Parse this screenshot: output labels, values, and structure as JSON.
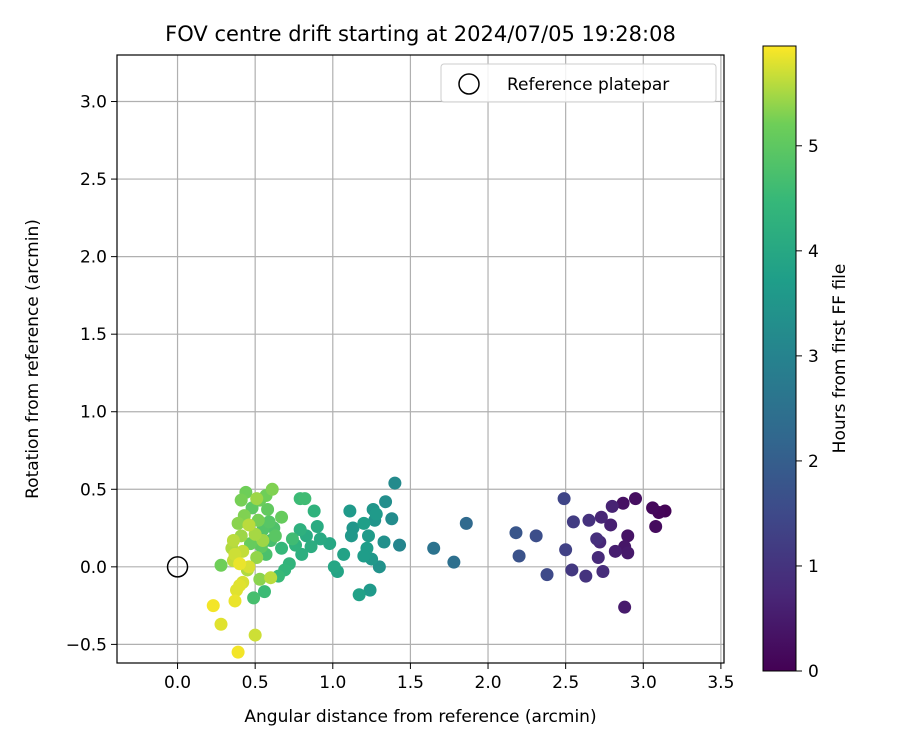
{
  "chart_data": {
    "type": "scatter",
    "title": "FOV centre drift starting at 2024/07/05 19:28:08",
    "xlabel": "Angular distance from reference (arcmin)",
    "ylabel": "Rotation from reference (arcmin)",
    "colorbar_label": "Hours from first FF file",
    "xlim": [
      -0.39,
      3.52
    ],
    "ylim": [
      -0.62,
      3.3
    ],
    "xticks": [
      0.0,
      0.5,
      1.0,
      1.5,
      2.0,
      2.5,
      3.0,
      3.5
    ],
    "xtick_labels": [
      "0.0",
      "0.5",
      "1.0",
      "1.5",
      "2.0",
      "2.5",
      "3.0",
      "3.5"
    ],
    "yticks": [
      -0.5,
      0.0,
      0.5,
      1.0,
      1.5,
      2.0,
      2.5,
      3.0
    ],
    "ytick_labels": [
      "−0.5",
      "0.0",
      "0.5",
      "1.0",
      "1.5",
      "2.0",
      "2.5",
      "3.0"
    ],
    "colorbar_range": [
      0,
      5.95
    ],
    "colorbar_ticks": [
      0,
      1,
      2,
      3,
      4,
      5
    ],
    "colorbar_tick_labels": [
      "0",
      "1",
      "2",
      "3",
      "4",
      "5"
    ],
    "colormap": "viridis",
    "grid": true,
    "legend": {
      "position": "top-right",
      "entries": [
        "Reference platepar"
      ]
    },
    "reference_point": {
      "x": 0.0,
      "y": 0.0,
      "label": "Reference platepar"
    },
    "points": [
      {
        "x": 3.14,
        "y": 0.36,
        "hours": 0.05
      },
      {
        "x": 3.1,
        "y": 0.35,
        "hours": 0.1
      },
      {
        "x": 3.06,
        "y": 0.38,
        "hours": 0.15
      },
      {
        "x": 3.08,
        "y": 0.26,
        "hours": 0.2
      },
      {
        "x": 2.95,
        "y": 0.44,
        "hours": 0.25
      },
      {
        "x": 2.87,
        "y": 0.41,
        "hours": 0.3
      },
      {
        "x": 2.9,
        "y": 0.2,
        "hours": 0.35
      },
      {
        "x": 2.88,
        "y": 0.13,
        "hours": 0.4
      },
      {
        "x": 2.9,
        "y": 0.09,
        "hours": 0.45
      },
      {
        "x": 2.88,
        "y": -0.26,
        "hours": 0.5
      },
      {
        "x": 2.82,
        "y": 0.1,
        "hours": 0.55
      },
      {
        "x": 2.79,
        "y": 0.27,
        "hours": 0.6
      },
      {
        "x": 2.8,
        "y": 0.39,
        "hours": 0.65
      },
      {
        "x": 2.73,
        "y": 0.32,
        "hours": 0.7
      },
      {
        "x": 2.72,
        "y": 0.16,
        "hours": 0.75
      },
      {
        "x": 2.71,
        "y": 0.06,
        "hours": 0.8
      },
      {
        "x": 2.74,
        "y": -0.03,
        "hours": 0.85
      },
      {
        "x": 2.7,
        "y": 0.18,
        "hours": 0.9
      },
      {
        "x": 2.65,
        "y": 0.3,
        "hours": 0.95
      },
      {
        "x": 2.63,
        "y": -0.06,
        "hours": 1.0
      },
      {
        "x": 2.54,
        "y": -0.02,
        "hours": 1.1
      },
      {
        "x": 2.55,
        "y": 0.29,
        "hours": 1.2
      },
      {
        "x": 2.5,
        "y": 0.11,
        "hours": 1.3
      },
      {
        "x": 2.49,
        "y": 0.44,
        "hours": 1.4
      },
      {
        "x": 2.38,
        "y": -0.05,
        "hours": 1.5
      },
      {
        "x": 2.31,
        "y": 0.2,
        "hours": 1.6
      },
      {
        "x": 2.2,
        "y": 0.07,
        "hours": 1.7
      },
      {
        "x": 2.18,
        "y": 0.22,
        "hours": 1.8
      },
      {
        "x": 1.86,
        "y": 0.28,
        "hours": 2.3
      },
      {
        "x": 1.78,
        "y": 0.03,
        "hours": 2.45
      },
      {
        "x": 1.65,
        "y": 0.12,
        "hours": 2.55
      },
      {
        "x": 1.43,
        "y": 0.14,
        "hours": 3.05
      },
      {
        "x": 1.4,
        "y": 0.54,
        "hours": 3.2
      },
      {
        "x": 1.38,
        "y": 0.31,
        "hours": 3.25
      },
      {
        "x": 1.34,
        "y": 0.42,
        "hours": 3.3
      },
      {
        "x": 1.33,
        "y": 0.16,
        "hours": 3.35
      },
      {
        "x": 1.3,
        "y": 0.0,
        "hours": 3.4
      },
      {
        "x": 1.27,
        "y": 0.3,
        "hours": 3.45
      },
      {
        "x": 1.26,
        "y": 0.37,
        "hours": 3.5
      },
      {
        "x": 1.25,
        "y": 0.05,
        "hours": 3.55
      },
      {
        "x": 1.24,
        "y": -0.15,
        "hours": 3.6
      },
      {
        "x": 1.23,
        "y": 0.2,
        "hours": 3.65
      },
      {
        "x": 1.22,
        "y": 0.12,
        "hours": 3.7
      },
      {
        "x": 1.2,
        "y": 0.28,
        "hours": 3.75
      },
      {
        "x": 1.17,
        "y": -0.18,
        "hours": 3.8
      },
      {
        "x": 1.13,
        "y": 0.25,
        "hours": 3.5
      },
      {
        "x": 1.12,
        "y": 0.2,
        "hours": 3.55
      },
      {
        "x": 1.11,
        "y": 0.36,
        "hours": 3.6
      },
      {
        "x": 1.07,
        "y": 0.08,
        "hours": 3.85
      },
      {
        "x": 1.03,
        "y": -0.03,
        "hours": 3.9
      },
      {
        "x": 1.01,
        "y": 0.0,
        "hours": 3.95
      },
      {
        "x": 0.98,
        "y": 0.15,
        "hours": 4.0
      },
      {
        "x": 0.92,
        "y": 0.18,
        "hours": 4.05
      },
      {
        "x": 0.9,
        "y": 0.26,
        "hours": 4.1
      },
      {
        "x": 0.88,
        "y": 0.36,
        "hours": 4.3
      },
      {
        "x": 0.86,
        "y": 0.13,
        "hours": 4.15
      },
      {
        "x": 0.83,
        "y": 0.2,
        "hours": 4.1
      },
      {
        "x": 0.82,
        "y": 0.44,
        "hours": 4.6
      },
      {
        "x": 0.8,
        "y": 0.08,
        "hours": 4.2
      },
      {
        "x": 0.79,
        "y": 0.44,
        "hours": 4.55
      },
      {
        "x": 0.79,
        "y": 0.24,
        "hours": 4.25
      },
      {
        "x": 0.76,
        "y": 0.14,
        "hours": 4.3
      },
      {
        "x": 0.72,
        "y": 0.02,
        "hours": 4.35
      },
      {
        "x": 0.69,
        "y": -0.02,
        "hours": 4.4
      },
      {
        "x": 0.67,
        "y": 0.12,
        "hours": 4.45
      },
      {
        "x": 0.67,
        "y": 0.32,
        "hours": 5.1
      },
      {
        "x": 0.65,
        "y": -0.06,
        "hours": 4.5
      },
      {
        "x": 0.62,
        "y": 0.25,
        "hours": 4.8
      },
      {
        "x": 0.61,
        "y": 0.5,
        "hours": 5.3
      },
      {
        "x": 0.6,
        "y": 0.17,
        "hours": 4.7
      },
      {
        "x": 0.59,
        "y": 0.29,
        "hours": 4.9
      },
      {
        "x": 0.58,
        "y": 0.37,
        "hours": 5.05
      },
      {
        "x": 0.57,
        "y": 0.46,
        "hours": 5.2
      },
      {
        "x": 0.57,
        "y": 0.08,
        "hours": 4.75
      },
      {
        "x": 0.56,
        "y": -0.16,
        "hours": 4.55
      },
      {
        "x": 0.55,
        "y": 0.24,
        "hours": 4.85
      },
      {
        "x": 0.54,
        "y": 0.13,
        "hours": 5.0
      },
      {
        "x": 0.53,
        "y": 0.43,
        "hours": 5.15
      },
      {
        "x": 0.53,
        "y": -0.08,
        "hours": 5.35
      },
      {
        "x": 0.52,
        "y": 0.3,
        "hours": 5.25
      },
      {
        "x": 0.51,
        "y": 0.44,
        "hours": 5.45
      },
      {
        "x": 0.51,
        "y": 0.06,
        "hours": 5.4
      },
      {
        "x": 0.5,
        "y": -0.44,
        "hours": 5.7
      },
      {
        "x": 0.5,
        "y": 0.21,
        "hours": 5.5
      },
      {
        "x": 0.49,
        "y": -0.2,
        "hours": 4.7
      },
      {
        "x": 0.48,
        "y": 0.38,
        "hours": 5.0
      },
      {
        "x": 0.47,
        "y": 0.15,
        "hours": 5.1
      },
      {
        "x": 0.46,
        "y": 0.27,
        "hours": 5.6
      },
      {
        "x": 0.45,
        "y": -0.02,
        "hours": 5.55
      },
      {
        "x": 0.44,
        "y": 0.48,
        "hours": 5.2
      },
      {
        "x": 0.43,
        "y": 0.33,
        "hours": 5.3
      },
      {
        "x": 0.42,
        "y": 0.1,
        "hours": 5.65
      },
      {
        "x": 0.42,
        "y": -0.1,
        "hours": 5.75
      },
      {
        "x": 0.41,
        "y": 0.43,
        "hours": 5.25
      },
      {
        "x": 0.41,
        "y": 0.2,
        "hours": 5.45
      },
      {
        "x": 0.4,
        "y": -0.12,
        "hours": 5.8
      },
      {
        "x": 0.4,
        "y": 0.02,
        "hours": 5.85
      },
      {
        "x": 0.39,
        "y": 0.28,
        "hours": 5.35
      },
      {
        "x": 0.39,
        "y": -0.55,
        "hours": 5.9
      },
      {
        "x": 0.38,
        "y": -0.15,
        "hours": 5.8
      },
      {
        "x": 0.37,
        "y": 0.08,
        "hours": 5.7
      },
      {
        "x": 0.37,
        "y": -0.22,
        "hours": 5.85
      },
      {
        "x": 0.36,
        "y": 0.17,
        "hours": 5.6
      },
      {
        "x": 0.36,
        "y": 0.04,
        "hours": 5.65
      },
      {
        "x": 0.35,
        "y": 0.12,
        "hours": 5.55
      },
      {
        "x": 0.28,
        "y": -0.37,
        "hours": 5.8
      },
      {
        "x": 0.28,
        "y": 0.01,
        "hours": 5.2
      },
      {
        "x": 0.23,
        "y": -0.25,
        "hours": 5.9
      },
      {
        "x": 0.55,
        "y": 0.17,
        "hours": 5.45
      },
      {
        "x": 0.6,
        "y": -0.07,
        "hours": 5.6
      },
      {
        "x": 0.46,
        "y": 0.0,
        "hours": 5.75
      },
      {
        "x": 0.63,
        "y": 0.2,
        "hours": 4.95
      },
      {
        "x": 0.74,
        "y": 0.18,
        "hours": 4.6
      },
      {
        "x": 1.28,
        "y": 0.34,
        "hours": 3.6
      },
      {
        "x": 1.2,
        "y": 0.07,
        "hours": 3.7
      }
    ]
  }
}
